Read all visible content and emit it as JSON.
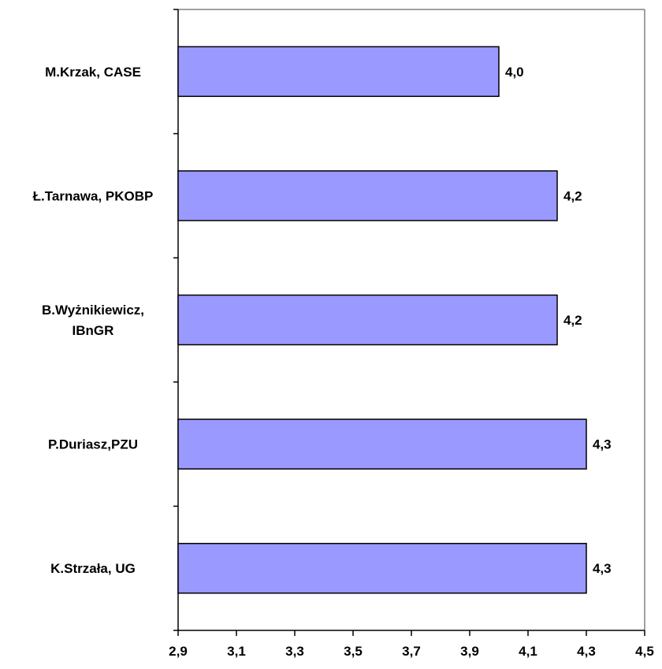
{
  "chart_data": {
    "type": "bar",
    "orientation": "horizontal",
    "title": "",
    "categories": [
      "M.Krzak, CASE",
      "Ł.Tarnawa, PKOBP",
      "B.Wyżnikiewicz, IBnGR",
      "P.Duriasz,PZU",
      "K.Strzała, UG"
    ],
    "category_label_lines": [
      [
        "M.Krzak, CASE"
      ],
      [
        "Ł.Tarnawa, PKOBP"
      ],
      [
        "B.Wyżnikiewicz,",
        "IBnGR"
      ],
      [
        "P.Duriasz,PZU"
      ],
      [
        "K.Strzała, UG"
      ]
    ],
    "values": [
      4.0,
      4.2,
      4.2,
      4.3,
      4.3
    ],
    "data_labels": [
      "4,0",
      "4,2",
      "4,2",
      "4,3",
      "4,3"
    ],
    "xlim": [
      2.9,
      4.5
    ],
    "x_ticks": [
      2.9,
      3.1,
      3.3,
      3.5,
      3.7,
      3.9,
      4.1,
      4.3,
      4.5
    ],
    "x_tick_labels": [
      "2,9",
      "3,1",
      "3,3",
      "3,5",
      "3,7",
      "3,9",
      "4,1",
      "4,3",
      "4,5"
    ],
    "xlabel": "",
    "ylabel": "",
    "grid": false,
    "legend": "none",
    "bar_color": "#9999ff",
    "bar_stroke": "#000000"
  }
}
